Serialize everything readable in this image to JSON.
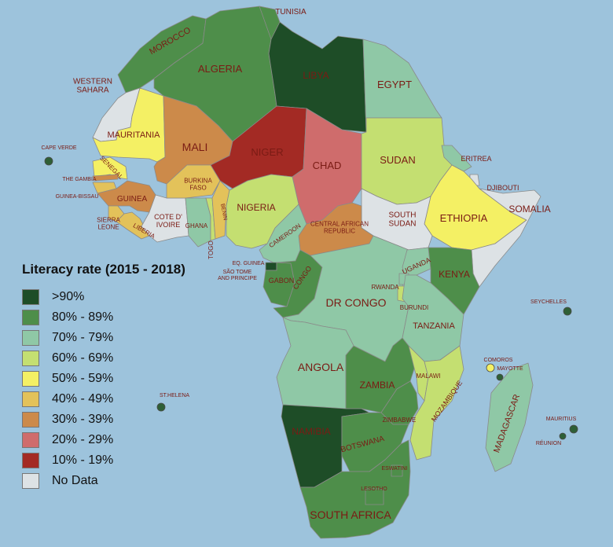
{
  "legend": {
    "title": "Literacy rate (2015 - 2018)",
    "items": [
      {
        "label": ">90%",
        "color": "#1e4d27"
      },
      {
        "label": "80% - 89%",
        "color": "#4e8e4a"
      },
      {
        "label": "70% - 79%",
        "color": "#8fc8a6"
      },
      {
        "label": "60% - 69%",
        "color": "#c4df71"
      },
      {
        "label": "50% - 59%",
        "color": "#f4f064"
      },
      {
        "label": "40% - 49%",
        "color": "#e3c25a"
      },
      {
        "label": "30% - 39%",
        "color": "#cc8a4a"
      },
      {
        "label": "20% - 29%",
        "color": "#cf6c6c"
      },
      {
        "label": "10% - 19%",
        "color": "#a32a24"
      },
      {
        "label": "No Data",
        "color": "#dde2e5"
      }
    ]
  },
  "colors": {
    "ocean": "#9dc3dc",
    "label": "#7a1b14",
    "island_marker": "#2e5f36"
  },
  "countries": [
    {
      "id": "morocco",
      "name": "MOROCCO",
      "color": "#4e8e4a"
    },
    {
      "id": "algeria",
      "name": "ALGERIA",
      "color": "#4e8e4a"
    },
    {
      "id": "tunisia",
      "name": "TUNISIA",
      "color": "#4e8e4a"
    },
    {
      "id": "libya",
      "name": "LIBYA",
      "color": "#1e4d27"
    },
    {
      "id": "egypt",
      "name": "EGYPT",
      "color": "#8fc8a6"
    },
    {
      "id": "western-sahara",
      "name": "WESTERN\nSAHARA",
      "color": "#dde2e5"
    },
    {
      "id": "mauritania",
      "name": "MAURITANIA",
      "color": "#f4f064"
    },
    {
      "id": "mali",
      "name": "MALI",
      "color": "#cc8a4a"
    },
    {
      "id": "niger",
      "name": "NIGER",
      "color": "#a32a24"
    },
    {
      "id": "chad",
      "name": "CHAD",
      "color": "#cf6c6c"
    },
    {
      "id": "sudan",
      "name": "SUDAN",
      "color": "#c4df71"
    },
    {
      "id": "eritrea",
      "name": "ERITREA",
      "color": "#8fc8a6"
    },
    {
      "id": "djibouti",
      "name": "DJIBOUTI",
      "color": "#dde2e5"
    },
    {
      "id": "ethiopia",
      "name": "ETHIOPIA",
      "color": "#f4f064"
    },
    {
      "id": "somalia",
      "name": "SOMALIA",
      "color": "#dde2e5"
    },
    {
      "id": "south-sudan",
      "name": "SOUTH\nSUDAN",
      "color": "#dde2e5"
    },
    {
      "id": "car",
      "name": "CENTRAL AFRICAN\nREPUBLIC",
      "color": "#cc8a4a"
    },
    {
      "id": "senegal",
      "name": "SENEGAL",
      "color": "#f4f064"
    },
    {
      "id": "the-gambia",
      "name": "THE GAMBIA",
      "color": "#cc8a4a"
    },
    {
      "id": "guinea-bissau",
      "name": "GUINEA-BISSAU",
      "color": "#e3c25a"
    },
    {
      "id": "guinea",
      "name": "GUINEA",
      "color": "#cc8a4a"
    },
    {
      "id": "sierra-leone",
      "name": "SIERRA\nLEONE",
      "color": "#e3c25a"
    },
    {
      "id": "liberia",
      "name": "LIBERIA",
      "color": "#e3c25a"
    },
    {
      "id": "cote-divoire",
      "name": "COTE D'\nIVOIRE",
      "color": "#dde2e5"
    },
    {
      "id": "burkina-faso",
      "name": "BURKINA\nFASO",
      "color": "#e3c25a"
    },
    {
      "id": "ghana",
      "name": "GHANA",
      "color": "#8fc8a6"
    },
    {
      "id": "togo",
      "name": "TOGO",
      "color": "#c4df71"
    },
    {
      "id": "benin",
      "name": "BENIN",
      "color": "#e3c25a"
    },
    {
      "id": "nigeria",
      "name": "NIGERIA",
      "color": "#c4df71"
    },
    {
      "id": "cameroon",
      "name": "CAMEROON",
      "color": "#8fc8a6"
    },
    {
      "id": "eq-guinea",
      "name": "EQ. GUINEA",
      "color": "#1e4d27"
    },
    {
      "id": "sao-tome",
      "name": "SÃO TOME\nAND PRINCIPE",
      "color": "#4e8e4a"
    },
    {
      "id": "gabon",
      "name": "GABON",
      "color": "#4e8e4a"
    },
    {
      "id": "congo",
      "name": "CONGO",
      "color": "#4e8e4a"
    },
    {
      "id": "dr-congo",
      "name": "DR CONGO",
      "color": "#8fc8a6"
    },
    {
      "id": "uganda",
      "name": "UGANDA",
      "color": "#8fc8a6"
    },
    {
      "id": "kenya",
      "name": "KENYA",
      "color": "#4e8e4a"
    },
    {
      "id": "rwanda",
      "name": "RWANDA",
      "color": "#8fc8a6"
    },
    {
      "id": "burundi",
      "name": "BURUNDI",
      "color": "#c4df71"
    },
    {
      "id": "tanzania",
      "name": "TANZANIA",
      "color": "#8fc8a6"
    },
    {
      "id": "angola",
      "name": "ANGOLA",
      "color": "#8fc8a6"
    },
    {
      "id": "zambia",
      "name": "ZAMBIA",
      "color": "#4e8e4a"
    },
    {
      "id": "malawi",
      "name": "MALAWI",
      "color": "#c4df71"
    },
    {
      "id": "mozambique",
      "name": "MOZAMBIQUE",
      "color": "#c4df71"
    },
    {
      "id": "zimbabwe",
      "name": "ZIMBABWE",
      "color": "#4e8e4a"
    },
    {
      "id": "namibia",
      "name": "NAMIBIA",
      "color": "#1e4d27"
    },
    {
      "id": "botswana",
      "name": "BOTSWANA",
      "color": "#4e8e4a"
    },
    {
      "id": "south-africa",
      "name": "SOUTH AFRICA",
      "color": "#4e8e4a"
    },
    {
      "id": "eswatini",
      "name": "ESWATINI",
      "color": "#4e8e4a"
    },
    {
      "id": "lesotho",
      "name": "LESOTHO",
      "color": "#4e8e4a"
    },
    {
      "id": "madagascar",
      "name": "MADAGASCAR",
      "color": "#8fc8a6"
    }
  ],
  "islands": [
    {
      "id": "cape-verde",
      "name": "CAPE VERDE",
      "color": "#2e5f36"
    },
    {
      "id": "st-helena",
      "name": "ST.HELENA",
      "color": "#2e5f36"
    },
    {
      "id": "seychelles",
      "name": "SEYCHELLES",
      "color": "#2e5f36"
    },
    {
      "id": "comoros",
      "name": "COMOROS",
      "color": "#f4f064"
    },
    {
      "id": "mayotte",
      "name": "MAYOTTE",
      "color": "#2e5f36"
    },
    {
      "id": "mauritius",
      "name": "MAURITIUS",
      "color": "#2e5f36"
    },
    {
      "id": "reunion",
      "name": "RÉUNION",
      "color": "#2e5f36"
    }
  ]
}
